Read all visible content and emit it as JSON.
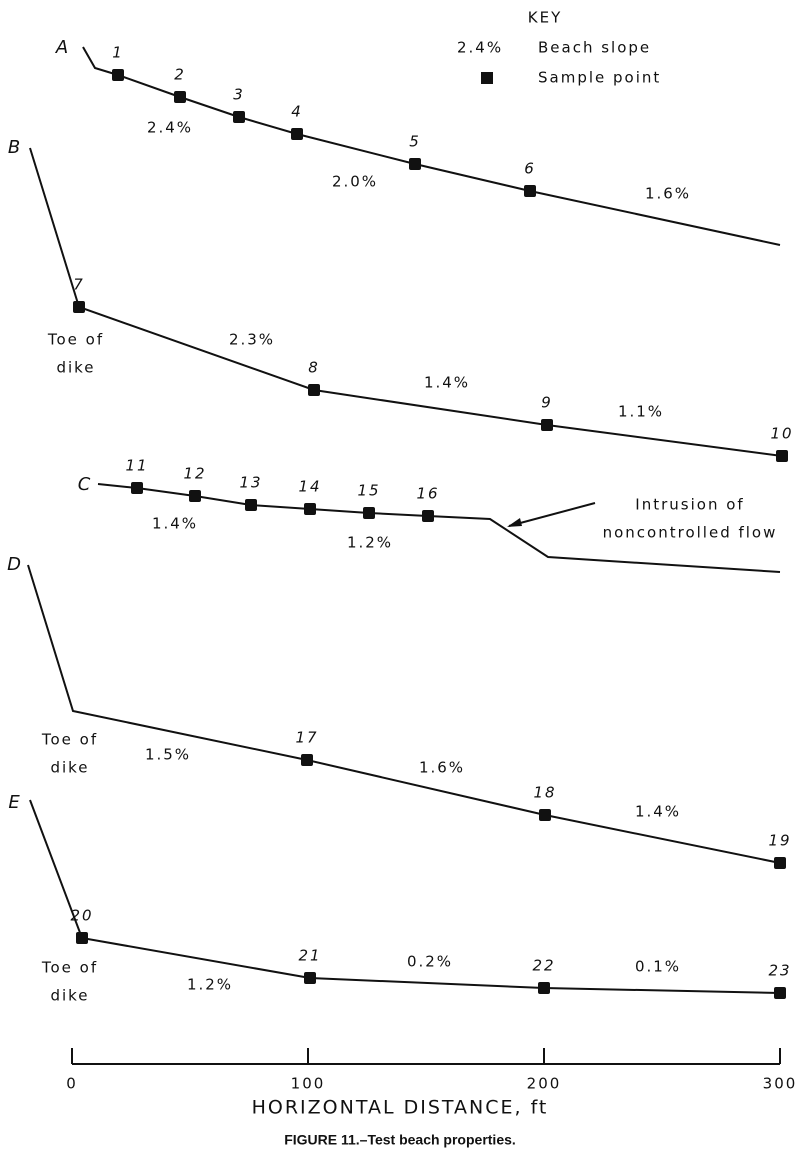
{
  "key": {
    "title": "KEY",
    "slope_example": "2.4%",
    "slope_label": "Beach slope",
    "sample_label": "Sample point"
  },
  "profiles": [
    {
      "label": "A",
      "points": [
        "1",
        "2",
        "3",
        "4",
        "5",
        "6"
      ],
      "slopes": [
        "2.4%",
        "2.0%",
        "1.6%"
      ]
    },
    {
      "label": "B",
      "points": [
        "7",
        "8",
        "9",
        "10"
      ],
      "slopes": [
        "2.3%",
        "1.4%",
        "1.1%"
      ],
      "toe": [
        "Toe of",
        "dike"
      ]
    },
    {
      "label": "C",
      "points": [
        "11",
        "12",
        "13",
        "14",
        "15",
        "16"
      ],
      "slopes": [
        "1.4%",
        "1.2%"
      ],
      "annotation": [
        "Intrusion of",
        "noncontrolled flow"
      ]
    },
    {
      "label": "D",
      "points": [
        "17",
        "18",
        "19"
      ],
      "slopes": [
        "1.5%",
        "1.6%",
        "1.4%"
      ],
      "toe": [
        "Toe of",
        "dike"
      ]
    },
    {
      "label": "E",
      "points": [
        "20",
        "21",
        "22",
        "23"
      ],
      "slopes": [
        "1.2%",
        "0.2%",
        "0.1%"
      ],
      "toe": [
        "Toe of",
        "dike"
      ]
    }
  ],
  "axis": {
    "ticks": [
      "0",
      "100",
      "200",
      "300"
    ],
    "title": "HORIZONTAL DISTANCE, ft"
  },
  "caption": "FIGURE 11.–Test beach properties."
}
